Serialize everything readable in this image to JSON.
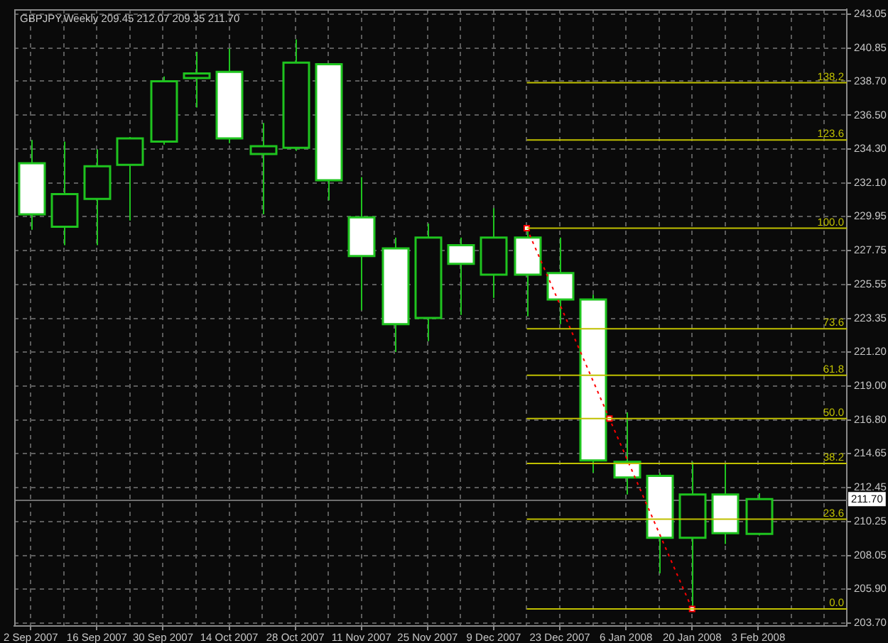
{
  "chart_data": {
    "type": "candlestick",
    "title": "GBPJPY,Weekly 209.45 212.07 209.35 211.70",
    "x": [
      "2007-09-02",
      "2007-09-09",
      "2007-09-16",
      "2007-09-23",
      "2007-09-30",
      "2007-10-07",
      "2007-10-14",
      "2007-10-21",
      "2007-10-28",
      "2007-11-04",
      "2007-11-11",
      "2007-11-18",
      "2007-11-25",
      "2007-12-02",
      "2007-12-09",
      "2007-12-16",
      "2007-12-23",
      "2007-12-30",
      "2008-01-06",
      "2008-01-13",
      "2008-01-20",
      "2008-01-27",
      "2008-02-03"
    ],
    "ohlc": [
      [
        233.4,
        234.9,
        229.1,
        230.1
      ],
      [
        229.3,
        234.8,
        228.1,
        231.4
      ],
      [
        231.1,
        234.3,
        228.1,
        233.2
      ],
      [
        233.3,
        235.1,
        229.7,
        235.0
      ],
      [
        234.8,
        239.0,
        234.6,
        238.7
      ],
      [
        238.9,
        240.6,
        237.0,
        239.2
      ],
      [
        239.3,
        240.8,
        234.7,
        235.0
      ],
      [
        234.0,
        236.0,
        230.1,
        234.5
      ],
      [
        234.4,
        241.4,
        234.2,
        239.9
      ],
      [
        239.8,
        239.8,
        231.0,
        232.3
      ],
      [
        229.9,
        232.5,
        223.9,
        227.4
      ],
      [
        227.9,
        228.6,
        221.2,
        223.0
      ],
      [
        223.4,
        229.5,
        221.9,
        228.6
      ],
      [
        228.1,
        228.6,
        223.6,
        226.9
      ],
      [
        226.2,
        230.5,
        224.7,
        228.6
      ],
      [
        228.6,
        229.2,
        223.5,
        226.2
      ],
      [
        226.3,
        228.6,
        223.0,
        224.6
      ],
      [
        224.6,
        224.9,
        213.4,
        214.2
      ],
      [
        214.1,
        217.3,
        212.0,
        213.1
      ],
      [
        213.2,
        213.4,
        206.9,
        209.2
      ],
      [
        209.2,
        214.1,
        204.6,
        212.0
      ],
      [
        212.0,
        214.0,
        208.8,
        209.5
      ],
      [
        209.45,
        212.07,
        209.35,
        211.7
      ]
    ],
    "color": "#1fc41f",
    "colors": [
      "#ffffff",
      "#0a0a0a",
      "#0a0a0a",
      "#0a0a0a",
      "#0a0a0a",
      "#0a0a0a",
      "#ffffff",
      "#0a0a0a",
      "#0a0a0a",
      "#ffffff",
      "#ffffff",
      "#ffffff",
      "#0a0a0a",
      "#ffffff",
      "#0a0a0a",
      "#ffffff",
      "#ffffff",
      "#ffffff",
      "#ffffff",
      "#ffffff",
      "#0a0a0a",
      "#ffffff",
      "#0a0a0a"
    ],
    "series": [
      {
        "type": "line",
        "name": "138.2",
        "color": "#c0c000",
        "x": [
          "2007-12-16",
          "2008-02-21T18:00"
        ],
        "values": [
          238.6,
          238.6
        ]
      },
      {
        "type": "line",
        "name": "123.6",
        "color": "#c0c000",
        "x": [
          "2007-12-16",
          "2008-02-21T18:00"
        ],
        "values": [
          234.9,
          234.9
        ]
      },
      {
        "type": "line",
        "name": "100.0",
        "color": "#c0c000",
        "x": [
          "2007-12-16",
          "2008-02-21T18:00"
        ],
        "values": [
          229.2,
          229.2
        ]
      },
      {
        "type": "line",
        "name": "73.6",
        "color": "#c0c000",
        "x": [
          "2007-12-16",
          "2008-02-21T18:00"
        ],
        "values": [
          222.7,
          222.7
        ]
      },
      {
        "type": "line",
        "name": "61.8",
        "color": "#c0c000",
        "x": [
          "2007-12-16",
          "2008-02-21T18:00"
        ],
        "values": [
          219.7,
          219.7
        ]
      },
      {
        "type": "line",
        "name": "50.0",
        "color": "#c0c000",
        "x": [
          "2007-12-16",
          "2008-02-21T18:00"
        ],
        "values": [
          216.9,
          216.9
        ]
      },
      {
        "type": "line",
        "name": "38.2",
        "color": "#c0c000",
        "x": [
          "2007-12-16",
          "2008-02-21T18:00"
        ],
        "values": [
          214.0,
          214.0
        ]
      },
      {
        "type": "line",
        "name": "23.6",
        "color": "#c0c000",
        "x": [
          "2007-12-16",
          "2008-02-21T18:00"
        ],
        "values": [
          210.4,
          210.4
        ]
      },
      {
        "type": "line",
        "name": "0.0",
        "color": "#c0c000",
        "x": [
          "2007-12-16",
          "2008-02-21T18:00"
        ],
        "values": [
          204.6,
          204.6
        ]
      },
      {
        "type": "line",
        "color": "#ff0000",
        "x": [
          "2007-12-16",
          "2008-01-02T12:00",
          "2008-01-20"
        ],
        "values": [
          229.2,
          216.9,
          204.6
        ],
        "marker": "square",
        "line_style": "dotted"
      }
    ],
    "xlim": [
      "2007-08-29T12:00",
      "2008-02-21T18:00"
    ],
    "xticks": [
      {
        "value": "2007-09-02",
        "label": "2 Sep 2007"
      },
      {
        "value": "2007-09-09",
        "label": null
      },
      {
        "value": "2007-09-16",
        "label": "16 Sep 2007"
      },
      {
        "value": "2007-09-23",
        "label": null
      },
      {
        "value": "2007-09-30",
        "label": "30 Sep 2007"
      },
      {
        "value": "2007-10-07",
        "label": null
      },
      {
        "value": "2007-10-14",
        "label": "14 Oct 2007"
      },
      {
        "value": "2007-10-21",
        "label": null
      },
      {
        "value": "2007-10-28",
        "label": "28 Oct 2007"
      },
      {
        "value": "2007-11-04",
        "label": null
      },
      {
        "value": "2007-11-11",
        "label": "11 Nov 2007"
      },
      {
        "value": "2007-11-18",
        "label": null
      },
      {
        "value": "2007-11-25",
        "label": "25 Nov 2007"
      },
      {
        "value": "2007-12-02",
        "label": null
      },
      {
        "value": "2007-12-09",
        "label": "9 Dec 2007"
      },
      {
        "value": "2007-12-16",
        "label": null
      },
      {
        "value": "2007-12-23",
        "label": "23 Dec 2007"
      },
      {
        "value": "2007-12-30",
        "label": null
      },
      {
        "value": "2008-01-06",
        "label": "6 Jan 2008"
      },
      {
        "value": "2008-01-13",
        "label": null
      },
      {
        "value": "2008-01-20",
        "label": "20 Jan 2008"
      },
      {
        "value": "2008-01-27",
        "label": null
      },
      {
        "value": "2008-02-03",
        "label": "3 Feb 2008"
      },
      {
        "value": "2008-02-10",
        "label": null
      },
      {
        "value": "2008-02-17",
        "label": null
      }
    ],
    "ylim": [
      203.5,
      243.35
    ],
    "yticks": [
      243.05,
      240.85,
      {
        "value": 238.7,
        "label": "238.70"
      },
      {
        "value": 236.5,
        "label": "236.50"
      },
      {
        "value": 234.3,
        "label": "234.30"
      },
      {
        "value": 232.1,
        "label": "232.10"
      },
      229.95,
      227.75,
      225.55,
      223.35,
      {
        "value": 221.2,
        "label": "221.20"
      },
      {
        "value": 219,
        "label": "219.00"
      },
      {
        "value": 216.8,
        "label": "216.80"
      },
      214.65,
      212.45,
      210.25,
      208.05,
      {
        "value": 205.9,
        "label": "205.90"
      },
      {
        "value": 203.7,
        "label": "203.70"
      }
    ],
    "grid": true,
    "ref_lines": [
      {
        "axis": "y",
        "value": 211.7,
        "label": "211.70",
        "color": "#6e6e6e"
      }
    ]
  }
}
